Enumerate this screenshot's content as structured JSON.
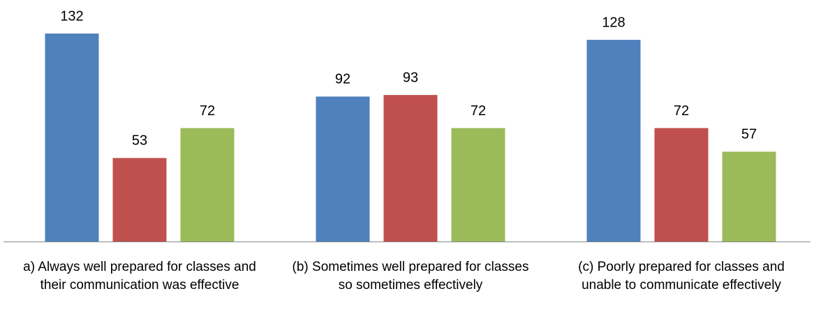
{
  "chart_data": {
    "type": "bar",
    "categories": [
      "a) Always well prepared for classes and their communication was effective",
      "(b)  Sometimes well prepared for classes so sometimes effectively",
      "(c)  Poorly prepared for classes and unable to communicate effectively"
    ],
    "series": [
      {
        "color": "#4f81bd",
        "values": [
          132,
          92,
          128
        ]
      },
      {
        "color": "#c0504d",
        "values": [
          53,
          93,
          72
        ]
      },
      {
        "color": "#9bbb59",
        "values": [
          72,
          72,
          57
        ]
      }
    ],
    "ylim": [
      0,
      140
    ],
    "data_labels": true
  }
}
